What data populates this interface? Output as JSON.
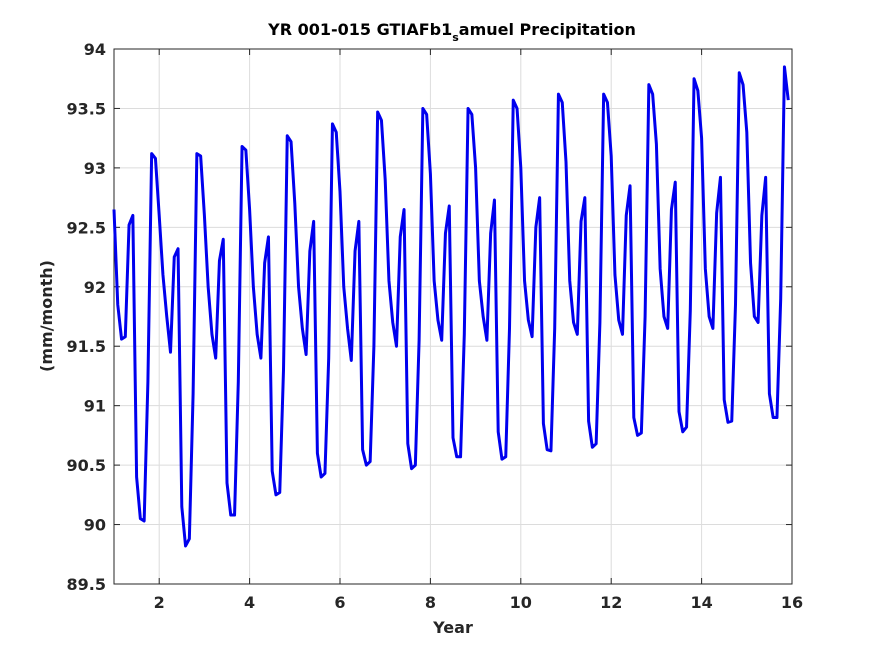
{
  "chart_data": {
    "type": "line",
    "title_main": "YR 001-015 GTIAFb1",
    "title_sub": "s",
    "title_rest": "amuel Precipitation",
    "xlabel": "Year",
    "ylabel": "(mm/month)",
    "xlim": [
      1,
      16
    ],
    "ylim": [
      89.5,
      94
    ],
    "xticks": [
      2,
      4,
      6,
      8,
      10,
      12,
      14,
      16
    ],
    "xtick_labels": [
      "2",
      "4",
      "6",
      "8",
      "10",
      "12",
      "14",
      "16"
    ],
    "yticks": [
      89.5,
      90,
      90.5,
      91,
      91.5,
      92,
      92.5,
      93,
      93.5,
      94
    ],
    "ytick_labels": [
      "89.5",
      "90",
      "90.5",
      "91",
      "91.5",
      "92",
      "92.5",
      "93",
      "93.5",
      "94"
    ],
    "grid": true,
    "line_color": "#0000ee",
    "series": [
      {
        "x": [
          1.0,
          1.083,
          1.167,
          1.25,
          1.333,
          1.417,
          1.5,
          1.583,
          1.667,
          1.75,
          1.833,
          1.917,
          2.0,
          2.083,
          2.167,
          2.25,
          2.333,
          2.417,
          2.5,
          2.583,
          2.667,
          2.75,
          2.833,
          2.917,
          3.0,
          3.083,
          3.167,
          3.25,
          3.333,
          3.417,
          3.5,
          3.583,
          3.667,
          3.75,
          3.833,
          3.917,
          4.0,
          4.083,
          4.167,
          4.25,
          4.333,
          4.417,
          4.5,
          4.583,
          4.667,
          4.75,
          4.833,
          4.917,
          5.0,
          5.083,
          5.167,
          5.25,
          5.333,
          5.417,
          5.5,
          5.583,
          5.667,
          5.75,
          5.833,
          5.917,
          6.0,
          6.083,
          6.167,
          6.25,
          6.333,
          6.417,
          6.5,
          6.583,
          6.667,
          6.75,
          6.833,
          6.917,
          7.0,
          7.083,
          7.167,
          7.25,
          7.333,
          7.417,
          7.5,
          7.583,
          7.667,
          7.75,
          7.833,
          7.917,
          8.0,
          8.083,
          8.167,
          8.25,
          8.333,
          8.417,
          8.5,
          8.583,
          8.667,
          8.75,
          8.833,
          8.917,
          9.0,
          9.083,
          9.167,
          9.25,
          9.333,
          9.417,
          9.5,
          9.583,
          9.667,
          9.75,
          9.833,
          9.917,
          10.0,
          10.083,
          10.167,
          10.25,
          10.333,
          10.417,
          10.5,
          10.583,
          10.667,
          10.75,
          10.833,
          10.917,
          11.0,
          11.083,
          11.167,
          11.25,
          11.333,
          11.417,
          11.5,
          11.583,
          11.667,
          11.75,
          11.833,
          11.917,
          12.0,
          12.083,
          12.167,
          12.25,
          12.333,
          12.417,
          12.5,
          12.583,
          12.667,
          12.75,
          12.833,
          12.917,
          13.0,
          13.083,
          13.167,
          13.25,
          13.333,
          13.417,
          13.5,
          13.583,
          13.667,
          13.75,
          13.833,
          13.917,
          14.0,
          14.083,
          14.167,
          14.25,
          14.333,
          14.417,
          14.5,
          14.583,
          14.667,
          14.75,
          14.833,
          14.917,
          15.0,
          15.083,
          15.167,
          15.25,
          15.333,
          15.417,
          15.5,
          15.583,
          15.667,
          15.75,
          15.833,
          15.917
        ],
        "y": [
          92.65,
          91.85,
          91.56,
          91.58,
          92.52,
          92.6,
          90.4,
          90.05,
          90.03,
          91.2,
          93.12,
          93.08,
          92.6,
          92.1,
          91.75,
          91.45,
          92.25,
          92.32,
          90.15,
          89.82,
          89.88,
          91.1,
          93.12,
          93.1,
          92.6,
          92.0,
          91.6,
          91.4,
          92.22,
          92.4,
          90.35,
          90.08,
          90.08,
          91.2,
          93.18,
          93.15,
          92.65,
          92.0,
          91.6,
          91.4,
          92.2,
          92.42,
          90.45,
          90.25,
          90.27,
          91.3,
          93.27,
          93.22,
          92.7,
          92.0,
          91.65,
          91.43,
          92.3,
          92.55,
          90.6,
          90.4,
          90.43,
          91.4,
          93.37,
          93.3,
          92.8,
          92.0,
          91.65,
          91.38,
          92.3,
          92.55,
          90.63,
          90.5,
          90.53,
          91.5,
          93.47,
          93.4,
          92.9,
          92.05,
          91.7,
          91.5,
          92.42,
          92.65,
          90.68,
          90.47,
          90.5,
          91.55,
          93.5,
          93.45,
          92.95,
          92.05,
          91.72,
          91.55,
          92.45,
          92.68,
          90.73,
          90.57,
          90.57,
          91.6,
          93.5,
          93.45,
          93.0,
          92.05,
          91.75,
          91.55,
          92.45,
          92.73,
          90.78,
          90.55,
          90.57,
          91.65,
          93.57,
          93.5,
          93.0,
          92.05,
          91.72,
          91.58,
          92.5,
          92.75,
          90.85,
          90.63,
          90.62,
          91.65,
          93.62,
          93.55,
          93.05,
          92.05,
          91.7,
          91.6,
          92.55,
          92.75,
          90.87,
          90.65,
          90.68,
          91.7,
          93.62,
          93.55,
          93.1,
          92.1,
          91.72,
          91.6,
          92.6,
          92.85,
          90.9,
          90.75,
          90.77,
          91.75,
          93.7,
          93.62,
          93.2,
          92.15,
          91.75,
          91.65,
          92.65,
          92.88,
          90.95,
          90.78,
          90.82,
          91.8,
          93.75,
          93.65,
          93.25,
          92.15,
          91.75,
          91.65,
          92.62,
          92.92,
          91.05,
          90.86,
          90.87,
          91.85,
          93.8,
          93.7,
          93.3,
          92.2,
          91.75,
          91.7,
          92.6,
          92.92,
          91.1,
          90.9,
          90.9,
          91.9,
          93.85,
          93.57
        ]
      }
    ]
  }
}
